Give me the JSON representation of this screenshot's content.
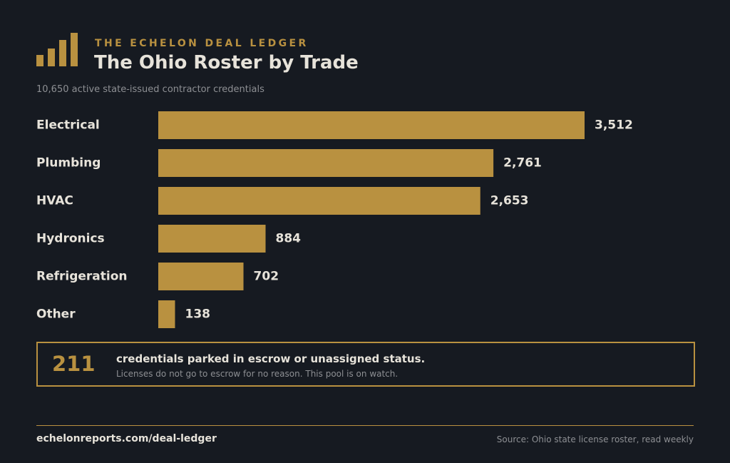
{
  "header": {
    "kicker": "THE ECHELON DEAL LEDGER",
    "title": "The Ohio Roster by Trade",
    "subtitle": "10,650 active state-issued contractor credentials"
  },
  "logo": {
    "icon": "bar-chart-logo-icon"
  },
  "chart_data": {
    "type": "bar",
    "orientation": "horizontal",
    "categories": [
      "Electrical",
      "Plumbing",
      "HVAC",
      "Hydronics",
      "Refrigeration",
      "Other"
    ],
    "values": [
      3512,
      2761,
      2653,
      884,
      702,
      138
    ],
    "value_labels": [
      "3,512",
      "2,761",
      "2,653",
      "884",
      "702",
      "138"
    ],
    "title": "",
    "xlabel": "",
    "ylabel": "",
    "xlim": [
      0,
      3512
    ],
    "grid": false,
    "legend": "none"
  },
  "callout": {
    "number": "211",
    "headline": "credentials parked in escrow or unassigned status.",
    "note": "Licenses do not go to escrow for no reason. This pool is on watch."
  },
  "footer": {
    "url": "echelonreports.com/deal-ledger",
    "source": "Source: Ohio state license roster, read weekly"
  },
  "colors": {
    "background": "#161a21",
    "accent": "#b99140",
    "text": "#e7e3da",
    "muted": "#8d8f93"
  }
}
